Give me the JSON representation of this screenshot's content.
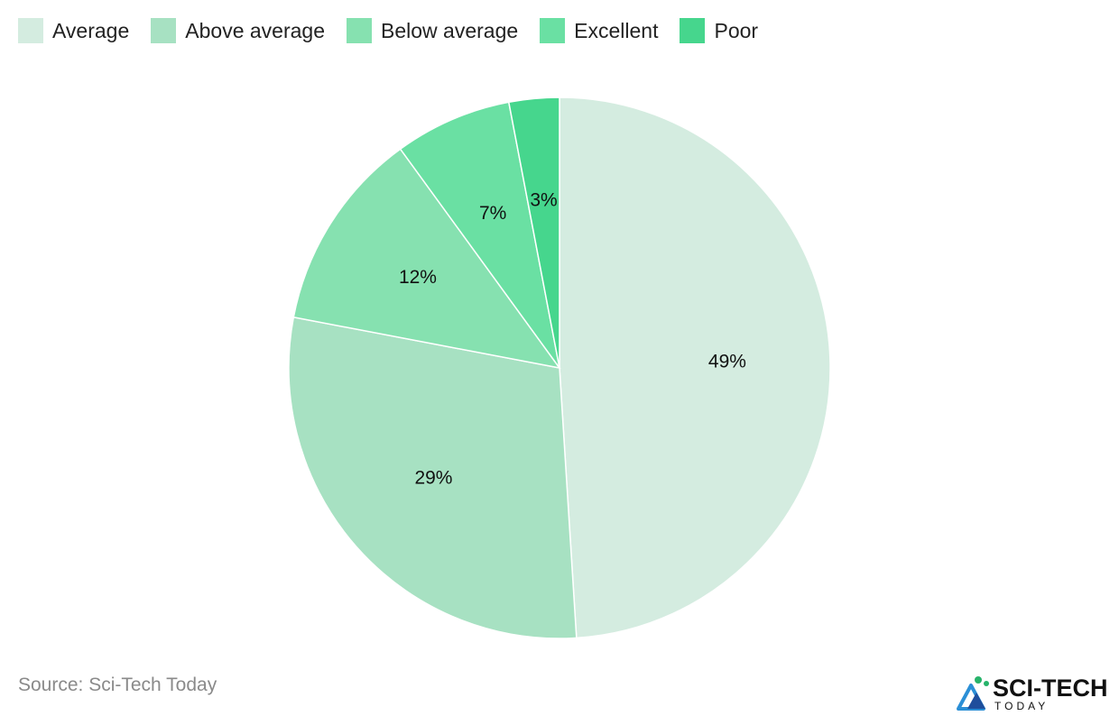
{
  "chart_data": {
    "type": "pie",
    "title": "",
    "categories": [
      "Average",
      "Above average",
      "Below average",
      "Excellent",
      "Poor"
    ],
    "values": [
      49,
      29,
      12,
      7,
      3
    ],
    "value_labels": [
      "49%",
      "29%",
      "12%",
      "7%",
      "3%"
    ],
    "colors": [
      "#d4ece0",
      "#a7e1c2",
      "#86e1b0",
      "#6ae0a3",
      "#46d68d"
    ],
    "legend_position": "top-left",
    "start_angle": "12 o'clock",
    "direction": "clockwise"
  },
  "source": "Source: Sci-Tech Today",
  "logo": {
    "main": "SCI-TECH",
    "sub": "TODAY",
    "icon": "triangle-logo-icon"
  }
}
